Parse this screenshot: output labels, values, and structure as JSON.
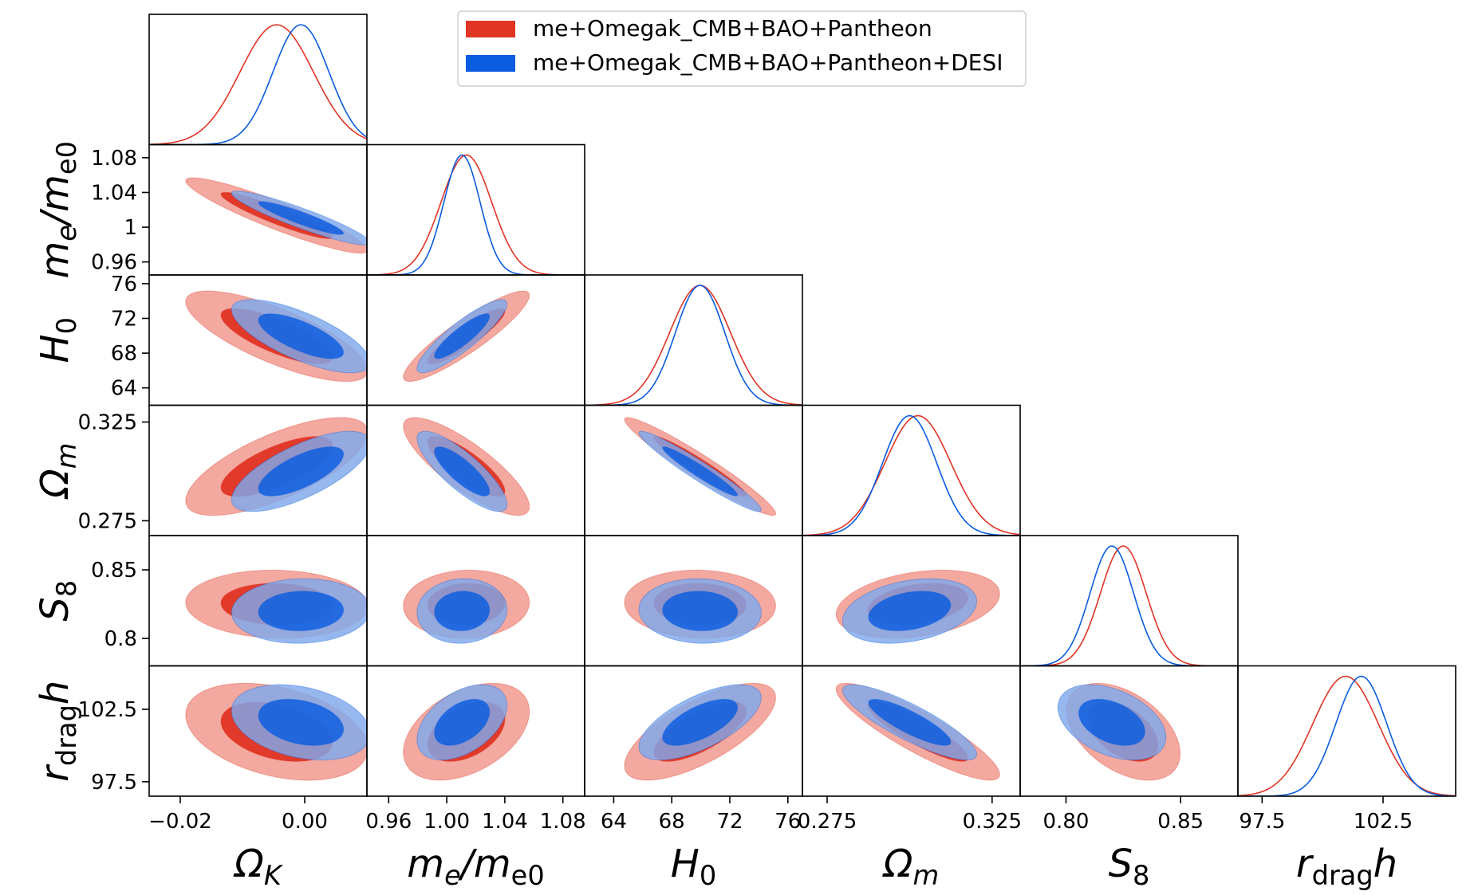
{
  "chart_data": {
    "type": "triangle-corner-plot",
    "params": [
      {
        "key": "Ok",
        "label_main": "Ω",
        "label_sub": "K",
        "range": [
          -0.025,
          0.01
        ],
        "ticks": [
          {
            "v": -0.02,
            "t": "−0.02"
          },
          {
            "v": 0.0,
            "t": "0.00"
          }
        ]
      },
      {
        "key": "me",
        "label_main": "m",
        "label_sub": "e",
        "label_tail": "/m",
        "label_sub2": "e0",
        "range": [
          0.945,
          1.095
        ],
        "ticks": [
          {
            "v": 0.96,
            "t": "0.96"
          },
          {
            "v": 1.0,
            "t": "1.00"
          },
          {
            "v": 1.04,
            "t": "1.04"
          },
          {
            "v": 1.08,
            "t": "1.08"
          }
        ],
        "yticks": [
          {
            "v": 0.96,
            "t": "0.96"
          },
          {
            "v": 1.0,
            "t": "1"
          },
          {
            "v": 1.04,
            "t": "1.04"
          },
          {
            "v": 1.08,
            "t": "1.08"
          }
        ]
      },
      {
        "key": "H0",
        "label_main": "H",
        "label_sub": "0",
        "range": [
          62,
          77
        ],
        "ticks": [
          {
            "v": 64,
            "t": "64"
          },
          {
            "v": 68,
            "t": "68"
          },
          {
            "v": 72,
            "t": "72"
          },
          {
            "v": 76,
            "t": "76"
          }
        ]
      },
      {
        "key": "Om",
        "label_main": "Ω",
        "label_sub": "m",
        "range": [
          0.2675,
          0.3335
        ],
        "ticks": [
          {
            "v": 0.275,
            "t": "0.275"
          },
          {
            "v": 0.325,
            "t": "0.325"
          }
        ]
      },
      {
        "key": "S8",
        "label_main": "S",
        "label_sub": "8",
        "range": [
          0.78,
          0.875
        ],
        "ticks": [
          {
            "v": 0.8,
            "t": "0.80"
          },
          {
            "v": 0.85,
            "t": "0.85"
          }
        ],
        "yticks": [
          {
            "v": 0.8,
            "t": "0.8"
          },
          {
            "v": 0.85,
            "t": "0.85"
          }
        ]
      },
      {
        "key": "rdh",
        "label_main": "r",
        "label_sub": "drag",
        "label_tail": "h",
        "range": [
          96.5,
          105.5
        ],
        "ticks": [
          {
            "v": 97.5,
            "t": "97.5"
          },
          {
            "v": 102.5,
            "t": "102.5"
          }
        ]
      }
    ],
    "series": [
      {
        "name": "me+Omegak_CMB+BAO+Pantheon",
        "color_dark": "#e03424",
        "color_light": "#f2a49a",
        "mean": [
          -0.0045,
          1.0135,
          69.95,
          0.3025,
          0.825,
          100.95
        ],
        "sigma": [
          0.0059,
          0.0175,
          2.1,
          0.01,
          0.01,
          1.35
        ],
        "corr": [
          [
            1,
            -0.92,
            -0.76,
            0.7,
            -0.05,
            -0.35
          ],
          [
            -0.92,
            1,
            0.9,
            -0.82,
            0.05,
            0.42
          ],
          [
            -0.76,
            0.9,
            1,
            -0.96,
            -0.05,
            0.7
          ],
          [
            0.7,
            -0.82,
            -0.96,
            1,
            0.3,
            -0.88
          ],
          [
            -0.05,
            0.05,
            -0.05,
            0.3,
            1,
            -0.45
          ],
          [
            -0.35,
            0.42,
            0.7,
            -0.88,
            -0.45,
            1
          ]
        ]
      },
      {
        "name": "me+Omegak_CMB+BAO+Pantheon+DESI",
        "color_dark": "#0a5ce0",
        "color_light": "#7fa8ec",
        "mean": [
          -0.0006,
          1.0105,
          69.95,
          0.3,
          0.82,
          101.6
        ],
        "sigma": [
          0.0045,
          0.0125,
          1.7,
          0.0082,
          0.0095,
          1.05
        ],
        "corr": [
          [
            1,
            -0.92,
            -0.72,
            0.7,
            0.05,
            -0.3
          ],
          [
            -0.92,
            1,
            0.88,
            -0.82,
            0.05,
            0.45
          ],
          [
            -0.72,
            0.88,
            1,
            -0.96,
            -0.05,
            0.65
          ],
          [
            0.7,
            -0.82,
            -0.96,
            1,
            0.3,
            -0.85
          ],
          [
            0.05,
            0.05,
            -0.05,
            0.3,
            1,
            -0.4
          ],
          [
            -0.3,
            0.45,
            0.65,
            -0.85,
            -0.4,
            1
          ]
        ]
      }
    ],
    "legend": {
      "position": "top-right"
    }
  }
}
